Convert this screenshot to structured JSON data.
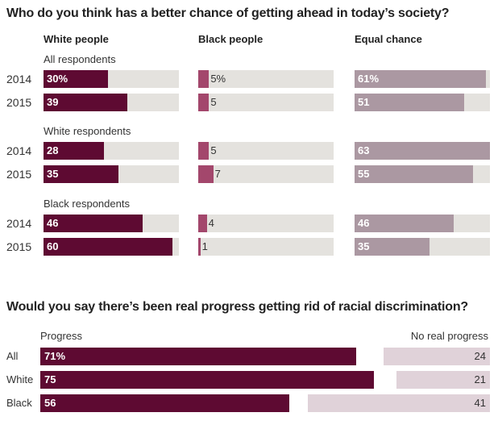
{
  "colors": {
    "white_people": "#5e0a32",
    "black_people": "#a3476c",
    "equal_chance": "#ab98a2",
    "track": "#e4e2de",
    "progress": "#5e0a32",
    "no_progress": "#e0d2d9"
  },
  "chart_data": [
    {
      "type": "bar",
      "title": "Who do you think has a better chance of getting ahead in today’s society?",
      "columns": [
        "White people",
        "Black people",
        "Equal chance"
      ],
      "scale_max": 63,
      "unit": "%",
      "groups": [
        {
          "label": "All respondents",
          "rows": [
            {
              "year": "2014",
              "values": [
                30,
                5,
                61
              ],
              "labels": [
                "30%",
                "5%",
                "61%"
              ]
            },
            {
              "year": "2015",
              "values": [
                39,
                5,
                51
              ],
              "labels": [
                "39",
                "5",
                "51"
              ]
            }
          ]
        },
        {
          "label": "White respondents",
          "rows": [
            {
              "year": "2014",
              "values": [
                28,
                5,
                63
              ],
              "labels": [
                "28",
                "5",
                "63"
              ]
            },
            {
              "year": "2015",
              "values": [
                35,
                7,
                55
              ],
              "labels": [
                "35",
                "7",
                "55"
              ]
            }
          ]
        },
        {
          "label": "Black respondents",
          "rows": [
            {
              "year": "2014",
              "values": [
                46,
                4,
                46
              ],
              "labels": [
                "46",
                "4",
                "46"
              ]
            },
            {
              "year": "2015",
              "values": [
                60,
                1,
                35
              ],
              "labels": [
                "60",
                "1",
                "35"
              ]
            }
          ]
        }
      ]
    },
    {
      "type": "bar",
      "title": "Would you say there’s been real progress getting rid of racial discrimination?",
      "left_label": "Progress",
      "right_label": "No real progress",
      "unit": "%",
      "categories": [
        "All",
        "White",
        "Black"
      ],
      "series": [
        {
          "name": "Progress",
          "values": [
            71,
            75,
            56
          ],
          "labels": [
            "71%",
            "75",
            "56"
          ]
        },
        {
          "name": "No real progress",
          "values": [
            24,
            21,
            41
          ],
          "labels": [
            "24",
            "21",
            "41"
          ]
        }
      ]
    }
  ]
}
